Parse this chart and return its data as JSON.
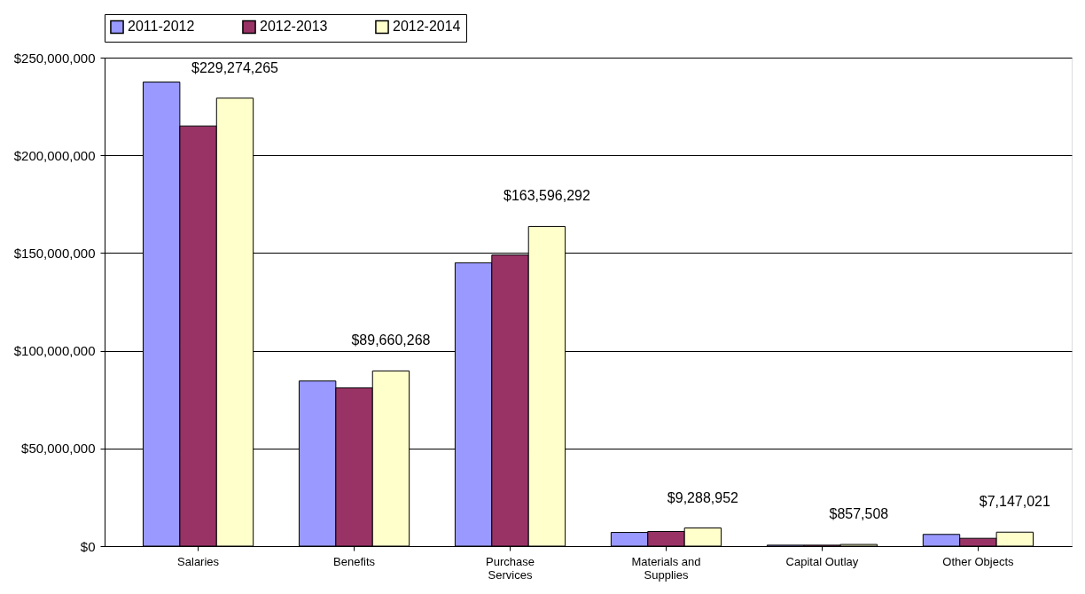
{
  "chart_data": {
    "type": "bar",
    "categories": [
      "Salaries",
      "Benefits",
      "Purchase\nServices",
      "Materials and\nSupplies",
      "Capital Outlay",
      "Other Objects"
    ],
    "series": [
      {
        "name": "2011-2012",
        "color": "#9999ff",
        "values": [
          237500000,
          84500000,
          145000000,
          7000000,
          500000,
          6000000
        ]
      },
      {
        "name": "2012-2013",
        "color": "#993366",
        "values": [
          215000000,
          81000000,
          149000000,
          7500000,
          500000,
          4000000
        ]
      },
      {
        "name": "2012-2014",
        "color": "#ffffcc",
        "values": [
          229274265,
          89660268,
          163596292,
          9288952,
          857508,
          7147021
        ],
        "value_labels": [
          "$229,274,265",
          "$89,660,268",
          "$163,596,292",
          "$9,288,952",
          "$857,508",
          "$7,147,021"
        ]
      }
    ],
    "ylim": [
      0,
      250000000
    ],
    "yticks": [
      {
        "value": 0,
        "label": "$0"
      },
      {
        "value": 50000000,
        "label": "$50,000,000"
      },
      {
        "value": 100000000,
        "label": "$100,000,000"
      },
      {
        "value": 150000000,
        "label": "$150,000,000"
      },
      {
        "value": 200000000,
        "label": "$200,000,000"
      },
      {
        "value": 250000000,
        "label": "$250,000,000"
      }
    ],
    "grid": "y",
    "legend": "top"
  }
}
